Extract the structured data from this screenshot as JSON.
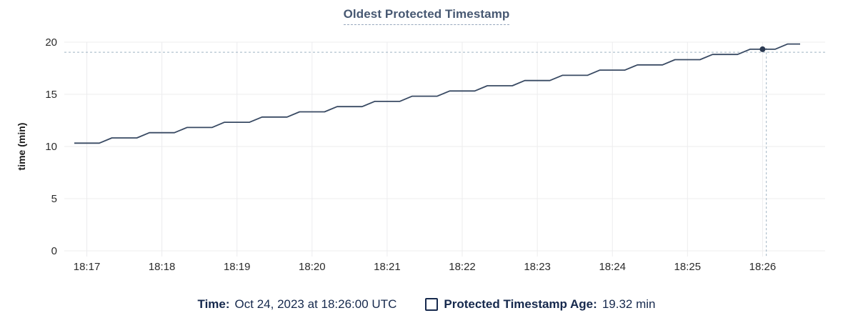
{
  "chart": {
    "title": "Oldest Protected Timestamp",
    "ylabel": "time (min)"
  },
  "legend": {
    "time_label": "Time:",
    "time_value": "Oct 24, 2023 at 18:26:00 UTC",
    "series_label": "Protected Timestamp Age:",
    "series_value": "19.32 min"
  },
  "colors": {
    "series_line": "#394a63",
    "hover_dot": "#2c3a52",
    "crosshair": "#9fb2c2",
    "gridline": "#ececee",
    "tick_text": "#2b2b2b",
    "title_text": "#475872",
    "legend_text": "#16294d",
    "background": "#ffffff"
  },
  "chart_data": {
    "type": "line",
    "title": "Oldest Protected Timestamp",
    "xlabel": "",
    "ylabel": "time (min)",
    "ylim": [
      0,
      20
    ],
    "yticks": [
      0,
      5,
      10,
      15,
      20
    ],
    "xticks": [
      "18:17",
      "18:18",
      "18:19",
      "18:20",
      "18:21",
      "18:22",
      "18:23",
      "18:24",
      "18:25",
      "18:26"
    ],
    "x_domain": [
      "18:16:42",
      "18:26:50"
    ],
    "grid": true,
    "legend_position": "bottom",
    "series": [
      {
        "name": "Protected Timestamp Age",
        "unit": "min",
        "points": [
          [
            "18:16:50",
            10.32
          ],
          [
            "18:17:00",
            10.32
          ],
          [
            "18:17:10",
            10.32
          ],
          [
            "18:17:20",
            10.82
          ],
          [
            "18:17:30",
            10.82
          ],
          [
            "18:17:40",
            10.82
          ],
          [
            "18:17:50",
            11.32
          ],
          [
            "18:18:00",
            11.32
          ],
          [
            "18:18:10",
            11.32
          ],
          [
            "18:18:20",
            11.82
          ],
          [
            "18:18:30",
            11.82
          ],
          [
            "18:18:40",
            11.82
          ],
          [
            "18:18:50",
            12.32
          ],
          [
            "18:19:00",
            12.32
          ],
          [
            "18:19:10",
            12.32
          ],
          [
            "18:19:20",
            12.82
          ],
          [
            "18:19:30",
            12.82
          ],
          [
            "18:19:40",
            12.82
          ],
          [
            "18:19:50",
            13.32
          ],
          [
            "18:20:00",
            13.32
          ],
          [
            "18:20:10",
            13.32
          ],
          [
            "18:20:20",
            13.82
          ],
          [
            "18:20:30",
            13.82
          ],
          [
            "18:20:40",
            13.82
          ],
          [
            "18:20:50",
            14.32
          ],
          [
            "18:21:00",
            14.32
          ],
          [
            "18:21:10",
            14.32
          ],
          [
            "18:21:20",
            14.82
          ],
          [
            "18:21:30",
            14.82
          ],
          [
            "18:21:40",
            14.82
          ],
          [
            "18:21:50",
            15.32
          ],
          [
            "18:22:00",
            15.32
          ],
          [
            "18:22:10",
            15.32
          ],
          [
            "18:22:20",
            15.82
          ],
          [
            "18:22:30",
            15.82
          ],
          [
            "18:22:40",
            15.82
          ],
          [
            "18:22:50",
            16.32
          ],
          [
            "18:23:00",
            16.32
          ],
          [
            "18:23:10",
            16.32
          ],
          [
            "18:23:20",
            16.82
          ],
          [
            "18:23:30",
            16.82
          ],
          [
            "18:23:40",
            16.82
          ],
          [
            "18:23:50",
            17.32
          ],
          [
            "18:24:00",
            17.32
          ],
          [
            "18:24:10",
            17.32
          ],
          [
            "18:24:20",
            17.82
          ],
          [
            "18:24:30",
            17.82
          ],
          [
            "18:24:40",
            17.82
          ],
          [
            "18:24:50",
            18.32
          ],
          [
            "18:25:00",
            18.32
          ],
          [
            "18:25:10",
            18.32
          ],
          [
            "18:25:20",
            18.82
          ],
          [
            "18:25:30",
            18.82
          ],
          [
            "18:25:40",
            18.82
          ],
          [
            "18:25:50",
            19.32
          ],
          [
            "18:26:00",
            19.32
          ],
          [
            "18:26:10",
            19.32
          ],
          [
            "18:26:20",
            19.82
          ],
          [
            "18:26:30",
            19.82
          ]
        ]
      }
    ],
    "highlight_point": {
      "time": "18:26:00",
      "value": 19.32
    },
    "crosshair": {
      "time": "18:26:03",
      "value": 19.03
    }
  }
}
